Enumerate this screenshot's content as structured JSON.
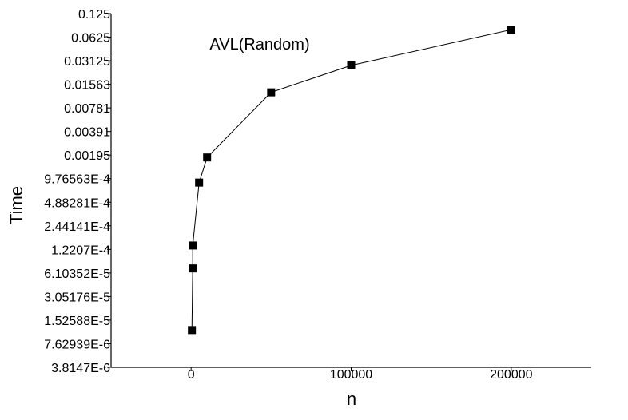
{
  "chart_data": {
    "type": "line",
    "title": "AVL(Random)",
    "xlabel": "n",
    "ylabel": "Time",
    "y_scale": "log2",
    "xlim": [
      -50000,
      250000
    ],
    "ylim": [
      3.8147e-06,
      0.125
    ],
    "x_ticks": [
      0,
      100000,
      200000
    ],
    "x_tick_labels": [
      "0",
      "100000",
      "200000"
    ],
    "y_ticks": [
      0.125,
      0.0625,
      0.03125,
      0.015625,
      0.0078125,
      0.00390625,
      0.001953125,
      0.000976563,
      0.000488281,
      0.000244141,
      0.00012207,
      6.10352e-05,
      3.05176e-05,
      1.52588e-05,
      7.62939e-06,
      3.8147e-06
    ],
    "y_tick_labels": [
      "0.125",
      "0.0625",
      "0.03125",
      "0.01563",
      "0.00781",
      "0.00391",
      "0.00195",
      "9.76563E-4",
      "4.88281E-4",
      "2.44141E-4",
      "1.2207E-4",
      "6.10352E-5",
      "3.05176E-5",
      "1.52588E-5",
      "7.62939E-6",
      "3.8147E-6"
    ],
    "grid": false,
    "marker": "square",
    "color": "#000000",
    "series": [
      {
        "x": [
          500,
          1000,
          1000,
          5000,
          10000,
          50000,
          100000,
          200000
        ],
        "y": [
          1.14e-05,
          6.98e-05,
          0.000137,
          0.00087,
          0.00182,
          0.01235,
          0.02727,
          0.0778
        ]
      }
    ]
  }
}
